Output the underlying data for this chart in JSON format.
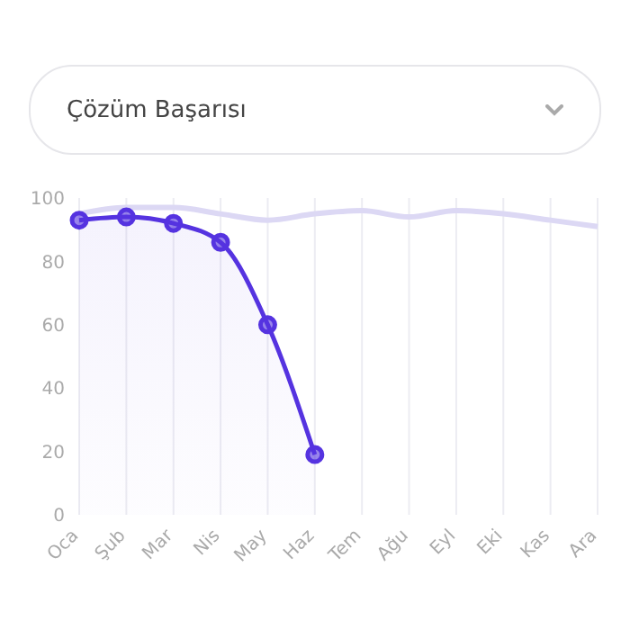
{
  "chart_data": {
    "type": "line",
    "title": "Çözüm Başarısı",
    "categories": [
      "Oca",
      "Şub",
      "Mar",
      "Nis",
      "May",
      "Haz",
      "Tem",
      "Ağu",
      "Eyl",
      "Eki",
      "Kas",
      "Ara"
    ],
    "series": [
      {
        "type": "area",
        "color": "#5533e0",
        "marker": "circle",
        "values": [
          93,
          94,
          92,
          86,
          60,
          19,
          null,
          null,
          null,
          null,
          null,
          null
        ]
      },
      {
        "color": "#dcd8f4",
        "marker": "none",
        "values": [
          95,
          97,
          97,
          95,
          93,
          95,
          96,
          94,
          96,
          95,
          93,
          91
        ]
      }
    ],
    "ylim": [
      0,
      100
    ],
    "yticks": [
      0,
      20,
      40,
      60,
      80,
      100
    ],
    "grid": "x"
  }
}
